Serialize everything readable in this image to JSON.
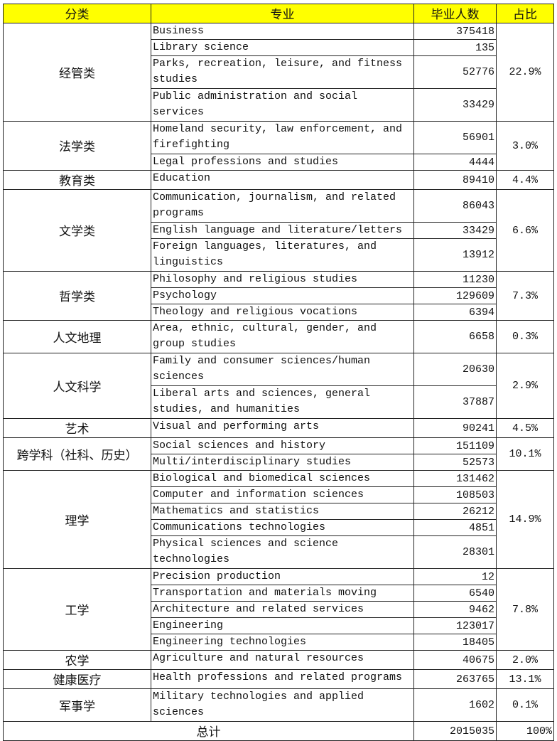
{
  "header": {
    "category": "分类",
    "major": "专业",
    "graduates": "毕业人数",
    "share": "占比"
  },
  "groups": [
    {
      "category": "经管类",
      "share": "22.9%",
      "rows": [
        {
          "major": "Business",
          "graduates": "375418",
          "lines": 1
        },
        {
          "major": "Library science",
          "graduates": "135",
          "lines": 1
        },
        {
          "major": "Parks, recreation, leisure, and fitness studies",
          "graduates": "52776",
          "lines": 2
        },
        {
          "major": "Public administration and social services",
          "graduates": "33429",
          "lines": 2
        }
      ]
    },
    {
      "category": "法学类",
      "share": "3.0%",
      "rows": [
        {
          "major": "Homeland security, law enforcement, and firefighting",
          "graduates": "56901",
          "lines": 2
        },
        {
          "major": "Legal professions and studies",
          "graduates": "4444",
          "lines": 1
        }
      ]
    },
    {
      "category": "教育类",
      "share": "4.4%",
      "rows": [
        {
          "major": "Education",
          "graduates": "89410",
          "lines": 1
        }
      ]
    },
    {
      "category": "文学类",
      "share": "6.6%",
      "rows": [
        {
          "major": "Communication, journalism, and related programs",
          "graduates": "86043",
          "lines": 2
        },
        {
          "major": "English language and literature/letters",
          "graduates": "33429",
          "lines": 1
        },
        {
          "major": "Foreign languages, literatures, and linguistics",
          "graduates": "13912",
          "lines": 2
        }
      ]
    },
    {
      "category": "哲学类",
      "share": "7.3%",
      "rows": [
        {
          "major": "Philosophy and religious studies",
          "graduates": "11230",
          "lines": 1
        },
        {
          "major": "Psychology",
          "graduates": "129609",
          "lines": 1
        },
        {
          "major": "Theology and religious vocations",
          "graduates": "6394",
          "lines": 1
        }
      ]
    },
    {
      "category": "人文地理",
      "share": "0.3%",
      "rows": [
        {
          "major": "Area, ethnic, cultural, gender, and group studies",
          "graduates": "6658",
          "lines": 2
        }
      ]
    },
    {
      "category": "人文科学",
      "share": "2.9%",
      "rows": [
        {
          "major": "Family and consumer sciences/human sciences",
          "graduates": "20630",
          "lines": 2
        },
        {
          "major": "Liberal arts and sciences, general studies, and humanities",
          "graduates": "37887",
          "lines": 2
        }
      ]
    },
    {
      "category": "艺术",
      "share": "4.5%",
      "rows": [
        {
          "major": "Visual and performing arts",
          "graduates": "90241",
          "lines": 1
        }
      ]
    },
    {
      "category": "跨学科（社科、历史）",
      "share": "10.1%",
      "rows": [
        {
          "major": "Social sciences and history",
          "graduates": "151109",
          "lines": 1
        },
        {
          "major": "Multi/interdisciplinary studies",
          "graduates": "52573",
          "lines": 1
        }
      ]
    },
    {
      "category": "理学",
      "share": "14.9%",
      "rows": [
        {
          "major": "Biological and biomedical sciences",
          "graduates": "131462",
          "lines": 1
        },
        {
          "major": "Computer and information sciences",
          "graduates": "108503",
          "lines": 1
        },
        {
          "major": "Mathematics and statistics",
          "graduates": "26212",
          "lines": 1
        },
        {
          "major": "Communications technologies",
          "graduates": "4851",
          "lines": 1
        },
        {
          "major": "Physical sciences and science technologies",
          "graduates": "28301",
          "lines": 2
        }
      ]
    },
    {
      "category": "工学",
      "share": "7.8%",
      "rows": [
        {
          "major": "Precision production",
          "graduates": "12",
          "lines": 1
        },
        {
          "major": "Transportation and materials moving",
          "graduates": "6540",
          "lines": 1
        },
        {
          "major": "Architecture and related services",
          "graduates": "9462",
          "lines": 1
        },
        {
          "major": "Engineering",
          "graduates": "123017",
          "lines": 1
        },
        {
          "major": "Engineering technologies",
          "graduates": "18405",
          "lines": 1
        }
      ]
    },
    {
      "category": "农学",
      "share": "2.0%",
      "rows": [
        {
          "major": "Agriculture and natural resources",
          "graduates": "40675",
          "lines": 1
        }
      ]
    },
    {
      "category": "健康医疗",
      "share": "13.1%",
      "rows": [
        {
          "major": "Health professions and related programs",
          "graduates": "263765",
          "lines": 1
        }
      ]
    },
    {
      "category": "军事学",
      "share": "0.1%",
      "rows": [
        {
          "major": "Military technologies and applied sciences",
          "graduates": "1602",
          "lines": 2
        }
      ]
    }
  ],
  "total": {
    "label": "总计",
    "graduates": "2015035",
    "share": "100%"
  },
  "colors": {
    "header_bg": "#ffff00",
    "border": "#222222"
  }
}
